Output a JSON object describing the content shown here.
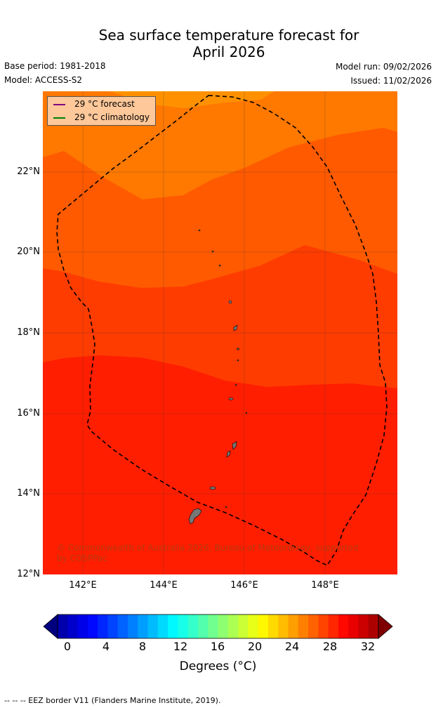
{
  "title_line1": "Sea surface temperature forecast for",
  "title_line2": "April 2026",
  "base_period": "Base period: 1981-2018",
  "model": "Model: ACCESS-S2",
  "model_run": "Model run: 09/02/2026",
  "issued": "Issued: 11/02/2026",
  "legend": {
    "forecast_label": "29 °C  forecast",
    "forecast_color": "#800080",
    "climatology_label": "29 °C  climatology",
    "climatology_color": "#008000"
  },
  "copyright": "© Commonwealth of Australia 2026, Bureau of Meteorology, supported by COSPPac",
  "lat_labels": [
    "22°N",
    "20°N",
    "18°N",
    "16°N",
    "14°N",
    "12°N"
  ],
  "lon_labels": [
    "142°E",
    "144°E",
    "146°E",
    "148°E"
  ],
  "colorbar": {
    "ticks": [
      "0",
      "4",
      "8",
      "12",
      "16",
      "20",
      "24",
      "28",
      "32"
    ],
    "label": "Degrees ($^\\circ$C)",
    "label_display": "Degrees (°C)",
    "range": [
      0,
      32
    ],
    "step": 1
  },
  "footnote": "--  --  -- EEZ border V11 (Flanders Marine Institute, 2019).",
  "colors": {
    "sst_27_28": "#ff7800",
    "sst_28_29": "#ff5a00",
    "sst_29_30": "#ff3c00",
    "sst_30_31": "#ff1e00"
  }
}
